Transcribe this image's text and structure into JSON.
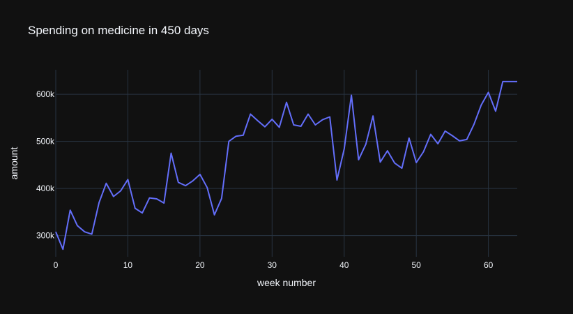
{
  "chart_data": {
    "type": "line",
    "title": "Spending on medicine in 450 days",
    "xlabel": "week number",
    "ylabel": "amount",
    "xlim": [
      0,
      64
    ],
    "ylim": [
      255000,
      652000
    ],
    "x_ticks": [
      0,
      10,
      20,
      30,
      40,
      50,
      60
    ],
    "y_ticks": [
      300000,
      400000,
      500000,
      600000
    ],
    "x_tick_labels": [
      "0",
      "10",
      "20",
      "30",
      "40",
      "50",
      "60"
    ],
    "y_tick_labels": [
      "300k",
      "400k",
      "500k",
      "600k"
    ],
    "grid": true,
    "colors": {
      "background": "#111111",
      "grid": "#283442",
      "line": "#636efa",
      "text": "#f2f5fa"
    },
    "series": [
      {
        "x": [
          0,
          1,
          2,
          3,
          4,
          5,
          6,
          7,
          8,
          9,
          10,
          11,
          12,
          13,
          14,
          15,
          16,
          17,
          18,
          19,
          20,
          21,
          22,
          23,
          24,
          25,
          26,
          27,
          28,
          29,
          30,
          31,
          32,
          33,
          34,
          35,
          36,
          37,
          38,
          39,
          40,
          41,
          42,
          43,
          44,
          45,
          46,
          47,
          48,
          49,
          50,
          51,
          52,
          53,
          54,
          55,
          56,
          57,
          58,
          59,
          60,
          61,
          62,
          63,
          64
        ],
        "values": [
          308000,
          271000,
          354000,
          321000,
          308000,
          303000,
          370000,
          411000,
          383000,
          395000,
          419000,
          358000,
          348000,
          380000,
          378000,
          369000,
          475000,
          413000,
          406000,
          416000,
          430000,
          402000,
          344000,
          379000,
          500000,
          511000,
          513000,
          558000,
          544000,
          531000,
          547000,
          530000,
          583000,
          535000,
          532000,
          558000,
          535000,
          546000,
          552000,
          418000,
          484000,
          598000,
          461000,
          494000,
          554000,
          456000,
          480000,
          454000,
          443000,
          507000,
          455000,
          478000,
          515000,
          495000,
          522000,
          512000,
          501000,
          504000,
          536000,
          577000,
          604000,
          564000,
          627000,
          627000,
          627000
        ]
      }
    ]
  }
}
